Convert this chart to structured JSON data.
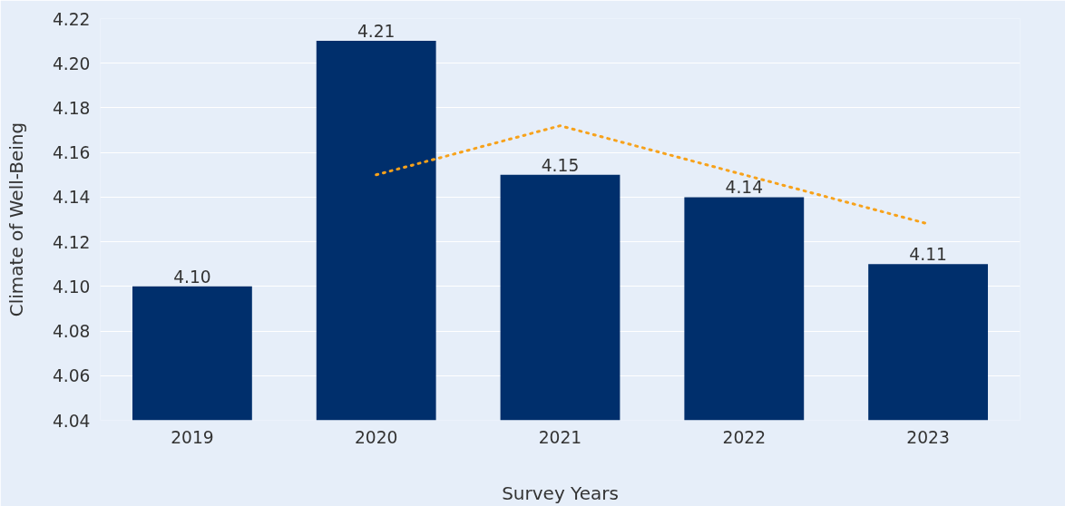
{
  "chart_data": {
    "type": "bar",
    "xlabel": "Survey Years",
    "ylabel": "Climate of Well-Being",
    "categories": [
      "2019",
      "2020",
      "2021",
      "2022",
      "2023"
    ],
    "series": [
      {
        "color": "#002f6c",
        "values": [
          4.1,
          4.21,
          4.15,
          4.14,
          4.11
        ],
        "value_labels": [
          "4.10",
          "4.21",
          "4.15",
          "4.14",
          "4.11"
        ]
      },
      {
        "type": "line",
        "color": "#f7a21b",
        "line_style": "dotted",
        "values": [
          null,
          4.15,
          4.172,
          4.15,
          4.128
        ]
      }
    ],
    "ylim": [
      4.04,
      4.22
    ],
    "yticks": [
      {
        "value": 4.04,
        "label": "4.04"
      },
      {
        "value": 4.06,
        "label": "4.06"
      },
      {
        "value": 4.08,
        "label": "4.08"
      },
      {
        "value": 4.1,
        "label": "4.10"
      },
      {
        "value": 4.12,
        "label": "4.12"
      },
      {
        "value": 4.14,
        "label": "4.14"
      },
      {
        "value": 4.16,
        "label": "4.16"
      },
      {
        "value": 4.18,
        "label": "4.18"
      },
      {
        "value": 4.2,
        "label": "4.20"
      },
      {
        "value": 4.22,
        "label": "4.22"
      }
    ],
    "grid": "y"
  }
}
